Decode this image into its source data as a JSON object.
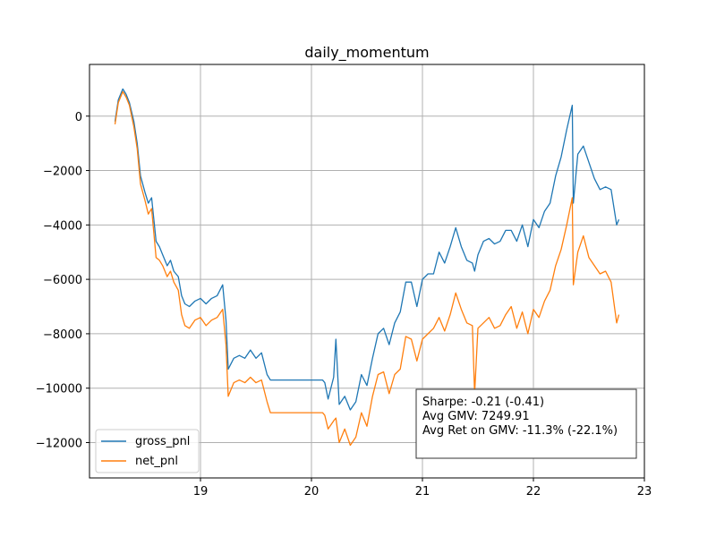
{
  "chart_data": {
    "type": "line",
    "title": "daily_momentum",
    "xlabel": "",
    "ylabel": "",
    "xlim": [
      18.0,
      23.0
    ],
    "ylim": [
      -13300,
      1900
    ],
    "grid": true,
    "legend": {
      "position": "lower-left",
      "entries": [
        "gross_pnl",
        "net_pnl"
      ]
    },
    "x_ticks": [
      19,
      20,
      21,
      22,
      23
    ],
    "x_tick_labels": [
      "19",
      "20",
      "21",
      "22",
      "23"
    ],
    "y_ticks": [
      0,
      -2000,
      -4000,
      -6000,
      -8000,
      -10000,
      -12000
    ],
    "y_tick_labels": [
      "0",
      "−2000",
      "−4000",
      "−6000",
      "−8000",
      "−10000",
      "−12000"
    ],
    "annotation": {
      "position": "lower-right",
      "lines": [
        "Sharpe: -0.21 (-0.41)",
        "Avg GMV: 7249.91",
        "Avg Ret on GMV: -11.3% (-22.1%)"
      ]
    },
    "series": [
      {
        "name": "gross_pnl",
        "color": "#1f77b4",
        "x": [
          18.23,
          18.26,
          18.3,
          18.33,
          18.36,
          18.4,
          18.43,
          18.46,
          18.5,
          18.53,
          18.56,
          18.6,
          18.63,
          18.66,
          18.7,
          18.73,
          18.76,
          18.8,
          18.83,
          18.86,
          18.9,
          18.95,
          19.0,
          19.05,
          19.1,
          19.15,
          19.2,
          19.23,
          19.25,
          19.3,
          19.35,
          19.4,
          19.45,
          19.5,
          19.55,
          19.6,
          19.63,
          19.7,
          19.8,
          19.9,
          20.0,
          20.1,
          20.12,
          20.15,
          20.2,
          20.22,
          20.25,
          20.3,
          20.35,
          20.4,
          20.45,
          20.5,
          20.55,
          20.6,
          20.65,
          20.7,
          20.75,
          20.8,
          20.85,
          20.9,
          20.95,
          21.0,
          21.05,
          21.1,
          21.15,
          21.2,
          21.25,
          21.3,
          21.35,
          21.4,
          21.45,
          21.47,
          21.5,
          21.55,
          21.6,
          21.65,
          21.7,
          21.75,
          21.8,
          21.85,
          21.9,
          21.95,
          22.0,
          22.05,
          22.1,
          22.15,
          22.2,
          22.25,
          22.3,
          22.35,
          22.36,
          22.4,
          22.45,
          22.5,
          22.55,
          22.6,
          22.65,
          22.7,
          22.75,
          22.77
        ],
        "y": [
          -200,
          600,
          1000,
          800,
          500,
          -200,
          -1000,
          -2200,
          -2800,
          -3200,
          -3000,
          -4600,
          -4800,
          -5100,
          -5500,
          -5300,
          -5700,
          -5900,
          -6600,
          -6900,
          -7000,
          -6800,
          -6700,
          -6900,
          -6700,
          -6600,
          -6200,
          -7500,
          -9300,
          -8900,
          -8800,
          -8900,
          -8600,
          -8900,
          -8700,
          -9500,
          -9700,
          -9700,
          -9700,
          -9700,
          -9700,
          -9700,
          -9800,
          -10400,
          -9600,
          -8200,
          -10600,
          -10300,
          -10800,
          -10500,
          -9500,
          -9900,
          -8900,
          -8000,
          -7800,
          -8400,
          -7600,
          -7200,
          -6100,
          -6100,
          -7000,
          -6000,
          -5800,
          -5800,
          -5000,
          -5400,
          -4800,
          -4100,
          -4800,
          -5300,
          -5400,
          -5700,
          -5100,
          -4600,
          -4500,
          -4700,
          -4600,
          -4200,
          -4200,
          -4600,
          -4000,
          -4800,
          -3800,
          -4100,
          -3500,
          -3200,
          -2200,
          -1500,
          -500,
          400,
          -3200,
          -1400,
          -1100,
          -1700,
          -2300,
          -2700,
          -2600,
          -2700,
          -4000,
          -3800
        ]
      },
      {
        "name": "net_pnl",
        "color": "#ff7f0e",
        "x": [
          18.23,
          18.26,
          18.3,
          18.33,
          18.36,
          18.4,
          18.43,
          18.46,
          18.5,
          18.53,
          18.56,
          18.6,
          18.63,
          18.66,
          18.7,
          18.73,
          18.76,
          18.8,
          18.83,
          18.86,
          18.9,
          18.95,
          19.0,
          19.05,
          19.1,
          19.15,
          19.2,
          19.23,
          19.25,
          19.3,
          19.35,
          19.4,
          19.45,
          19.5,
          19.55,
          19.6,
          19.63,
          19.7,
          19.8,
          19.9,
          20.0,
          20.1,
          20.12,
          20.15,
          20.2,
          20.22,
          20.25,
          20.3,
          20.35,
          20.4,
          20.45,
          20.5,
          20.55,
          20.6,
          20.65,
          20.7,
          20.75,
          20.8,
          20.85,
          20.9,
          20.95,
          21.0,
          21.05,
          21.1,
          21.15,
          21.2,
          21.25,
          21.3,
          21.35,
          21.4,
          21.45,
          21.47,
          21.5,
          21.55,
          21.6,
          21.65,
          21.7,
          21.75,
          21.8,
          21.85,
          21.9,
          21.95,
          22.0,
          22.05,
          22.1,
          22.15,
          22.2,
          22.25,
          22.3,
          22.35,
          22.36,
          22.4,
          22.45,
          22.5,
          22.55,
          22.6,
          22.65,
          22.7,
          22.75,
          22.77
        ],
        "y": [
          -300,
          500,
          900,
          700,
          400,
          -400,
          -1200,
          -2500,
          -3100,
          -3600,
          -3400,
          -5200,
          -5300,
          -5500,
          -5900,
          -5700,
          -6100,
          -6400,
          -7300,
          -7700,
          -7800,
          -7500,
          -7400,
          -7700,
          -7500,
          -7400,
          -7100,
          -8400,
          -10300,
          -9800,
          -9700,
          -9800,
          -9600,
          -9800,
          -9700,
          -10500,
          -10900,
          -10900,
          -10900,
          -10900,
          -10900,
          -10900,
          -11000,
          -11500,
          -11200,
          -11100,
          -12000,
          -11500,
          -12100,
          -11800,
          -10900,
          -11400,
          -10300,
          -9500,
          -9400,
          -10200,
          -9500,
          -9300,
          -8100,
          -8200,
          -9000,
          -8200,
          -8000,
          -7800,
          -7400,
          -7900,
          -7300,
          -6500,
          -7100,
          -7600,
          -7700,
          -10200,
          -7800,
          -7600,
          -7400,
          -7800,
          -7700,
          -7300,
          -7000,
          -7800,
          -7200,
          -8000,
          -7100,
          -7400,
          -6800,
          -6400,
          -5500,
          -4900,
          -4000,
          -3000,
          -6200,
          -5000,
          -4400,
          -5200,
          -5500,
          -5800,
          -5700,
          -6100,
          -7600,
          -7300
        ]
      }
    ]
  }
}
